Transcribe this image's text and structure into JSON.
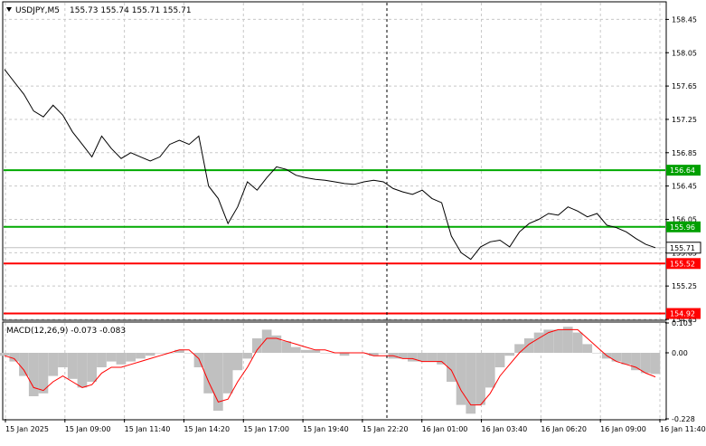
{
  "header": {
    "symbol": "USDJPY,M5",
    "ohlc": "155.73 155.74 155.71 155.71"
  },
  "macd": {
    "label": "MACD(12,26,9) -0.073 -0.083",
    "axis_labels": [
      "0.103",
      "0.00",
      "-0.228"
    ]
  },
  "colors": {
    "price_line": "#000000",
    "support_line": "#00aa00",
    "resistance_line": "#ff0000",
    "histogram": "#c0c0c0",
    "signal_line": "#ff0000",
    "grid": "#c8c8c8",
    "label_green": "#00a000",
    "label_red": "#ff0000"
  },
  "chart_data": {
    "type": "line",
    "title": "USDJPY,M5",
    "ylim": [
      154.85,
      158.65
    ],
    "price_axis_labels": [
      "158.45",
      "158.05",
      "157.65",
      "157.25",
      "156.85",
      "156.45",
      "156.05",
      "155.65",
      "155.25",
      "154.85"
    ],
    "time_axis_labels": [
      "15 Jan 2025",
      "15 Jan 09:00",
      "15 Jan 11:40",
      "15 Jan 14:20",
      "15 Jan 17:00",
      "15 Jan 19:40",
      "15 Jan 22:20",
      "16 Jan 01:00",
      "16 Jan 03:40",
      "16 Jan 06:20",
      "16 Jan 09:00",
      "16 Jan 11:40"
    ],
    "horizontal_levels": [
      {
        "value": 156.64,
        "label": "156.64",
        "color": "green"
      },
      {
        "value": 155.96,
        "label": "155.96",
        "color": "green"
      },
      {
        "value": 155.52,
        "label": "155.52",
        "color": "red"
      },
      {
        "value": 154.92,
        "label": "154.92",
        "color": "red"
      }
    ],
    "current_price": {
      "value": 155.71,
      "label": "155.71"
    },
    "price_series": [
      157.85,
      157.7,
      157.55,
      157.35,
      157.28,
      157.42,
      157.3,
      157.1,
      156.95,
      156.8,
      157.05,
      156.9,
      156.78,
      156.85,
      156.8,
      156.75,
      156.8,
      156.95,
      157.0,
      156.95,
      157.05,
      156.45,
      156.3,
      156.0,
      156.2,
      156.5,
      156.4,
      156.55,
      156.68,
      156.65,
      156.58,
      156.55,
      156.53,
      156.52,
      156.5,
      156.48,
      156.47,
      156.5,
      156.52,
      156.5,
      156.42,
      156.38,
      156.35,
      156.4,
      156.3,
      156.25,
      155.85,
      155.65,
      155.57,
      155.72,
      155.78,
      155.8,
      155.72,
      155.9,
      156.0,
      156.05,
      156.12,
      156.1,
      156.2,
      156.15,
      156.08,
      156.12,
      155.98,
      155.95,
      155.9,
      155.82,
      155.75,
      155.71
    ],
    "macd_ylim": [
      -0.228,
      0.103
    ],
    "macd_histogram": [
      -0.01,
      -0.03,
      -0.08,
      -0.15,
      -0.14,
      -0.08,
      -0.05,
      -0.09,
      -0.12,
      -0.1,
      -0.05,
      -0.03,
      -0.04,
      -0.03,
      -0.02,
      -0.01,
      0.0,
      0.0,
      0.01,
      0.0,
      -0.05,
      -0.14,
      -0.2,
      -0.14,
      -0.06,
      -0.02,
      0.05,
      0.08,
      0.06,
      0.04,
      0.02,
      0.01,
      0.01,
      0.0,
      0.0,
      -0.01,
      0.0,
      0.0,
      -0.01,
      0.0,
      -0.02,
      -0.02,
      -0.03,
      -0.03,
      -0.03,
      -0.04,
      -0.1,
      -0.18,
      -0.21,
      -0.18,
      -0.12,
      -0.05,
      -0.01,
      0.03,
      0.05,
      0.07,
      0.08,
      0.08,
      0.09,
      0.07,
      0.03,
      0.0,
      -0.02,
      -0.03,
      -0.04,
      -0.06,
      -0.07,
      -0.073
    ],
    "macd_signal": [
      -0.01,
      -0.02,
      -0.06,
      -0.12,
      -0.13,
      -0.1,
      -0.08,
      -0.1,
      -0.12,
      -0.11,
      -0.07,
      -0.05,
      -0.05,
      -0.04,
      -0.03,
      -0.02,
      -0.01,
      0.0,
      0.01,
      0.01,
      -0.02,
      -0.1,
      -0.17,
      -0.16,
      -0.1,
      -0.05,
      0.01,
      0.05,
      0.05,
      0.04,
      0.03,
      0.02,
      0.01,
      0.01,
      0.0,
      0.0,
      0.0,
      0.0,
      -0.01,
      -0.01,
      -0.01,
      -0.02,
      -0.02,
      -0.03,
      -0.03,
      -0.03,
      -0.06,
      -0.13,
      -0.18,
      -0.18,
      -0.14,
      -0.08,
      -0.04,
      0.0,
      0.03,
      0.05,
      0.07,
      0.08,
      0.08,
      0.08,
      0.05,
      0.02,
      -0.01,
      -0.03,
      -0.04,
      -0.05,
      -0.07,
      -0.083
    ]
  }
}
